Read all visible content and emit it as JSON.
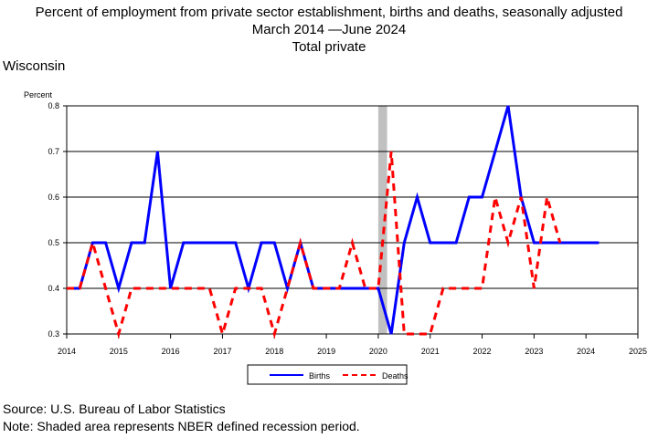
{
  "header": {
    "title_line1": "Percent of employment from private sector establishment, births and deaths, seasonally adjusted",
    "title_line2": "March 2014 —June 2024",
    "title_line3": "Total private",
    "state": "Wisconsin"
  },
  "footer": {
    "source": "Source: U.S. Bureau of Labor Statistics",
    "note": "Note: Shaded area represents NBER defined recession period."
  },
  "chart_data": {
    "type": "line",
    "ylabel": "Percent",
    "ylim": [
      0.3,
      0.8
    ],
    "xlim": [
      2014,
      2025
    ],
    "x_ticks": [
      "2014",
      "2015",
      "2016",
      "2017",
      "2018",
      "2019",
      "2020",
      "2021",
      "2022",
      "2023",
      "2024",
      "2025"
    ],
    "y_ticks": [
      "0.3",
      "0.4",
      "0.5",
      "0.6",
      "0.7",
      "0.8"
    ],
    "grid": "horizontal",
    "legend_position": "bottom-center",
    "recession": {
      "start": 2020.0,
      "end": 2020.17
    },
    "series": [
      {
        "name": "Births",
        "color": "#0000ff",
        "style": "solid",
        "x": [
          2014.0,
          2014.25,
          2014.5,
          2014.75,
          2015.0,
          2015.25,
          2015.5,
          2015.75,
          2016.0,
          2016.25,
          2016.5,
          2016.75,
          2017.0,
          2017.25,
          2017.5,
          2017.75,
          2018.0,
          2018.25,
          2018.5,
          2018.75,
          2019.0,
          2019.25,
          2019.5,
          2019.75,
          2020.0,
          2020.25,
          2020.5,
          2020.75,
          2021.0,
          2021.25,
          2021.5,
          2021.75,
          2022.0,
          2022.25,
          2022.5,
          2022.75,
          2023.0,
          2023.25,
          2023.5,
          2023.75,
          2024.0,
          2024.25
        ],
        "values": [
          0.4,
          0.4,
          0.5,
          0.5,
          0.4,
          0.5,
          0.5,
          0.7,
          0.4,
          0.5,
          0.5,
          0.5,
          0.5,
          0.5,
          0.4,
          0.5,
          0.5,
          0.4,
          0.5,
          0.4,
          0.4,
          0.4,
          0.4,
          0.4,
          0.4,
          0.3,
          0.5,
          0.6,
          0.5,
          0.5,
          0.5,
          0.6,
          0.6,
          0.7,
          0.8,
          0.6,
          0.5,
          0.5,
          0.5,
          0.5,
          0.5,
          0.5
        ]
      },
      {
        "name": "Deaths",
        "color": "#ff0000",
        "style": "dashed",
        "x": [
          2014.0,
          2014.25,
          2014.5,
          2014.75,
          2015.0,
          2015.25,
          2015.5,
          2015.75,
          2016.0,
          2016.25,
          2016.5,
          2016.75,
          2017.0,
          2017.25,
          2017.5,
          2017.75,
          2018.0,
          2018.25,
          2018.5,
          2018.75,
          2019.0,
          2019.25,
          2019.5,
          2019.75,
          2020.0,
          2020.25,
          2020.5,
          2020.75,
          2021.0,
          2021.25,
          2021.5,
          2021.75,
          2022.0,
          2022.25,
          2022.5,
          2022.75,
          2023.0,
          2023.25,
          2023.5
        ],
        "values": [
          0.4,
          0.4,
          0.5,
          0.4,
          0.3,
          0.4,
          0.4,
          0.4,
          0.4,
          0.4,
          0.4,
          0.4,
          0.3,
          0.4,
          0.4,
          0.4,
          0.3,
          0.4,
          0.5,
          0.4,
          0.4,
          0.4,
          0.5,
          0.4,
          0.4,
          0.7,
          0.3,
          0.3,
          0.3,
          0.4,
          0.4,
          0.4,
          0.4,
          0.6,
          0.5,
          0.6,
          0.4,
          0.6,
          0.5
        ]
      }
    ]
  }
}
